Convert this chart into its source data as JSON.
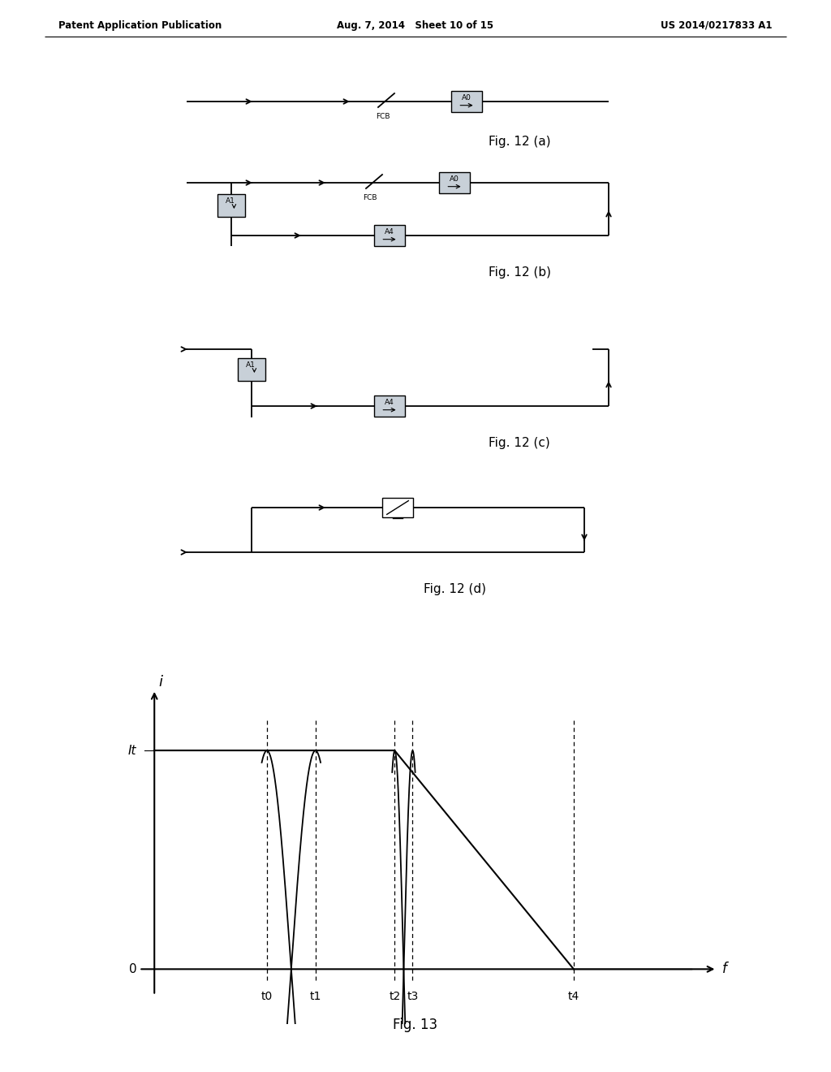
{
  "title_left": "Patent Application Publication",
  "title_center": "Aug. 7, 2014   Sheet 10 of 15",
  "title_right": "US 2014/0217833 A1",
  "background_color": "#ffffff",
  "line_color": "#000000",
  "box_fill": "#c8d0d8",
  "fig_labels": [
    "Fig. 12 (a)",
    "Fig. 12 (b)",
    "Fig. 12 (c)",
    "Fig. 12 (d)",
    "Fig. 13"
  ],
  "graph_xlabel": "f",
  "graph_ylabel": "i",
  "graph_It_label": "It",
  "graph_xticks": [
    "0",
    "t0",
    "t1",
    "t2",
    "t3",
    "t4"
  ],
  "t0": 0.22,
  "t1": 0.315,
  "t2": 0.47,
  "t3": 0.505,
  "t4": 0.82
}
